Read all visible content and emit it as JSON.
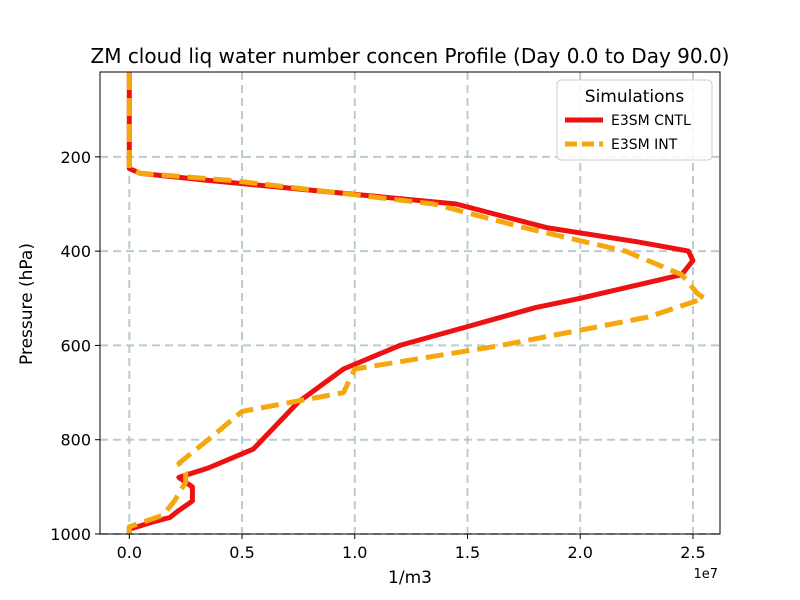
{
  "chart_data": {
    "type": "line",
    "title": "ZM cloud liq water number concen Profile (Day 0.0 to Day 90.0)",
    "xlabel": "1/m3",
    "ylabel": "Pressure (hPa)",
    "x_scale_label": "1e7",
    "x_scale": 10000000,
    "xlim": [
      -0.13,
      2.62
    ],
    "ylim": [
      1000,
      20
    ],
    "y_inverted": true,
    "grid": true,
    "xticks": [
      0.0,
      0.5,
      1.0,
      1.5,
      2.0,
      2.5
    ],
    "xtick_labels": [
      "0.0",
      "0.5",
      "1.0",
      "1.5",
      "2.0",
      "2.5"
    ],
    "yticks": [
      200,
      400,
      600,
      800,
      1000
    ],
    "ytick_labels": [
      "200",
      "400",
      "600",
      "800",
      "1000"
    ],
    "legend": {
      "title": "Simulations",
      "placement": "top-right",
      "entries": [
        "E3SM CNTL",
        "E3SM INT"
      ]
    },
    "series": [
      {
        "name": "E3SM CNTL",
        "color": "#ee1111",
        "style": "solid",
        "x_e7": [
          0.0,
          0.0,
          0.0,
          0.0,
          0.0,
          0.05,
          0.35,
          1.45,
          1.85,
          2.25,
          2.48,
          2.5,
          2.45,
          2.0,
          1.8,
          1.5,
          1.2,
          0.95,
          0.75,
          0.55,
          0.35,
          0.22,
          0.28,
          0.28,
          0.22,
          0.18,
          0.1,
          0.0,
          0.0
        ],
        "pressure": [
          20,
          100,
          200,
          215,
          225,
          235,
          250,
          300,
          350,
          380,
          400,
          420,
          450,
          500,
          520,
          560,
          600,
          650,
          720,
          820,
          860,
          880,
          900,
          930,
          950,
          965,
          975,
          990,
          1000
        ]
      },
      {
        "name": "E3SM INT",
        "color": "#f5a70c",
        "style": "dashed",
        "x_e7": [
          0.0,
          0.0,
          0.0,
          0.0,
          0.0,
          0.05,
          0.45,
          1.35,
          1.75,
          2.2,
          2.45,
          2.52,
          2.55,
          2.3,
          1.65,
          1.0,
          0.95,
          0.5,
          0.35,
          0.22,
          0.25,
          0.25,
          0.2,
          0.15,
          0.0,
          0.0
        ],
        "pressure": [
          20,
          100,
          200,
          215,
          225,
          235,
          250,
          300,
          350,
          400,
          450,
          490,
          500,
          540,
          600,
          650,
          700,
          740,
          800,
          850,
          870,
          890,
          930,
          960,
          985,
          1000
        ]
      }
    ]
  }
}
